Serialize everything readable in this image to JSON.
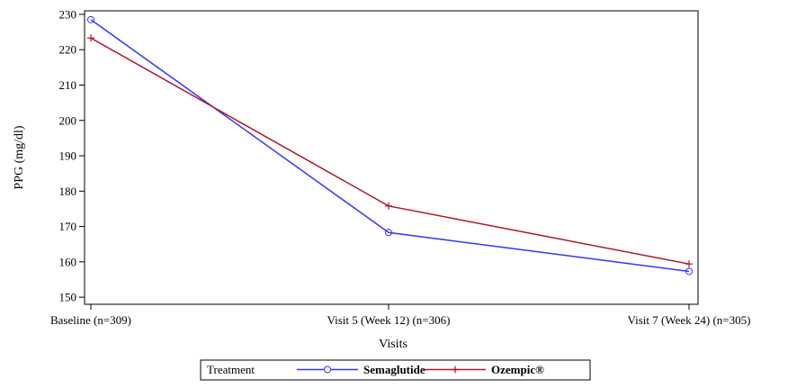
{
  "chart_data": {
    "type": "line",
    "categories": [
      "Baseline (n=309)",
      "Visit 5 (Week 12) (n=306)",
      "Visit 7 (Week 24) (n=305)"
    ],
    "series": [
      {
        "name": "Semaglutide",
        "values": [
          228.5,
          168.3,
          157.3
        ],
        "color": "#3333ff",
        "marker": "circle"
      },
      {
        "name": "Ozempic®",
        "values": [
          223.3,
          175.8,
          159.4
        ],
        "color": "#b0162e",
        "marker": "plus"
      }
    ],
    "xlabel": "Visits",
    "ylabel": "PPG (mg/dl)",
    "ylim": [
      148,
      231
    ],
    "yticks": [
      150,
      160,
      170,
      180,
      190,
      200,
      210,
      220,
      230
    ],
    "grid": false,
    "legend": {
      "title": "Treatment",
      "placement": "bottom"
    }
  }
}
